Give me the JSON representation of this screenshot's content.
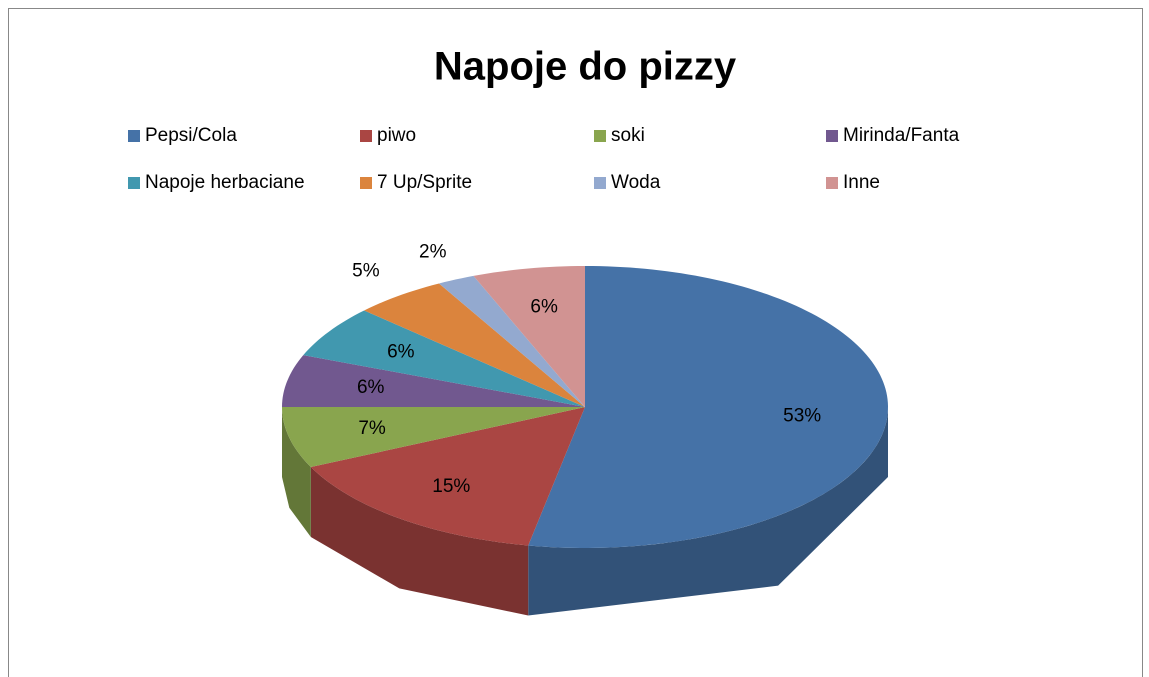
{
  "chart_data": {
    "type": "pie",
    "title": "Napoje do pizzy",
    "categories": [
      "Pepsi/Cola",
      "piwo",
      "soki",
      "Mirinda/Fanta",
      "Napoje herbaciane",
      "7 Up/Sprite",
      "Woda",
      "Inne"
    ],
    "values": [
      53,
      15,
      7,
      6,
      6,
      5,
      2,
      6
    ],
    "value_labels": [
      "53%",
      "15%",
      "7%",
      "6%",
      "6%",
      "5%",
      "2%",
      "6%"
    ],
    "colors": [
      "#4572a7",
      "#aa4643",
      "#89a54e",
      "#71588f",
      "#4198af",
      "#db843d",
      "#93a9cf",
      "#d19392"
    ],
    "legend": "top"
  }
}
